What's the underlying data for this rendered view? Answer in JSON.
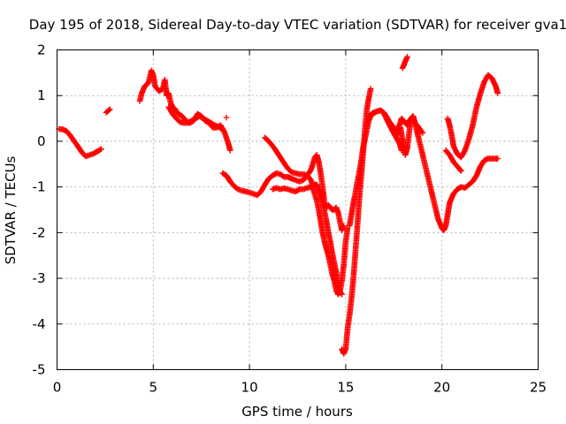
{
  "chart_data": {
    "type": "scatter",
    "title": "Day 195 of 2018, Sidereal Day-to-day VTEC variation (SDTVAR) for receiver gva1",
    "xlabel": "GPS time / hours",
    "ylabel": "SDTVAR / TECUs",
    "xlim": [
      0,
      25
    ],
    "ylim": [
      -5,
      2
    ],
    "xticks": [
      0,
      5,
      10,
      15,
      20,
      25
    ],
    "yticks": [
      -5,
      -4,
      -3,
      -2,
      -1,
      0,
      1,
      2
    ],
    "xtick_labels": [
      "0",
      "5",
      "10",
      "15",
      "20",
      "25"
    ],
    "ytick_labels": [
      "-5",
      "-4",
      "-3",
      "-2",
      "-1",
      "0",
      "1",
      "2"
    ],
    "grid": true,
    "marker": "plus",
    "color": "#ff0000",
    "series": [
      {
        "segments": [
          [
            [
              0.1,
              0.27
            ],
            [
              0.3,
              0.26
            ],
            [
              0.5,
              0.22
            ],
            [
              0.7,
              0.12
            ],
            [
              0.9,
              0.0
            ],
            [
              1.1,
              -0.12
            ],
            [
              1.3,
              -0.25
            ],
            [
              1.5,
              -0.33
            ],
            [
              1.7,
              -0.3
            ],
            [
              1.9,
              -0.27
            ],
            [
              2.1,
              -0.22
            ],
            [
              2.3,
              -0.17
            ]
          ],
          [
            [
              2.55,
              0.63
            ],
            [
              2.75,
              0.7
            ]
          ],
          [
            [
              4.3,
              0.88
            ],
            [
              4.4,
              1.05
            ],
            [
              4.55,
              1.2
            ],
            [
              4.75,
              1.28
            ],
            [
              4.9,
              1.55
            ],
            [
              5.0,
              1.45
            ],
            [
              5.1,
              1.2
            ],
            [
              5.3,
              1.1
            ],
            [
              5.5,
              1.15
            ],
            [
              5.6,
              1.35
            ],
            [
              5.7,
              1.0
            ],
            [
              5.8,
              1.05
            ],
            [
              5.9,
              0.85
            ],
            [
              6.0,
              0.75
            ],
            [
              6.1,
              0.72
            ],
            [
              6.3,
              0.6
            ],
            [
              6.5,
              0.55
            ],
            [
              6.7,
              0.45
            ],
            [
              6.9,
              0.4
            ],
            [
              7.1,
              0.45
            ],
            [
              7.3,
              0.6
            ],
            [
              7.5,
              0.55
            ],
            [
              7.7,
              0.45
            ],
            [
              7.9,
              0.4
            ],
            [
              8.1,
              0.3
            ],
            [
              8.3,
              0.3
            ],
            [
              8.5,
              0.35
            ],
            [
              8.7,
              0.2
            ],
            [
              8.9,
              -0.05
            ],
            [
              9.0,
              -0.2
            ]
          ],
          [
            [
              8.8,
              0.52
            ]
          ],
          [
            [
              5.8,
              0.75
            ],
            [
              6.0,
              0.6
            ],
            [
              6.2,
              0.5
            ],
            [
              6.4,
              0.42
            ],
            [
              6.6,
              0.4
            ],
            [
              6.8,
              0.4
            ],
            [
              7.0,
              0.45
            ],
            [
              7.2,
              0.5
            ],
            [
              7.4,
              0.55
            ],
            [
              7.6,
              0.5
            ],
            [
              7.8,
              0.45
            ],
            [
              8.0,
              0.4
            ],
            [
              8.2,
              0.35
            ],
            [
              8.4,
              0.32
            ],
            [
              8.6,
              0.25
            ]
          ],
          [
            [
              8.6,
              -0.7
            ],
            [
              8.8,
              -0.75
            ],
            [
              9.0,
              -0.88
            ],
            [
              9.2,
              -0.98
            ],
            [
              9.4,
              -1.05
            ],
            [
              9.6,
              -1.08
            ],
            [
              9.8,
              -1.1
            ],
            [
              10.0,
              -1.12
            ],
            [
              10.2,
              -1.15
            ],
            [
              10.4,
              -1.18
            ],
            [
              10.6,
              -1.1
            ],
            [
              10.8,
              -0.95
            ],
            [
              11.0,
              -0.82
            ],
            [
              11.2,
              -0.75
            ],
            [
              11.4,
              -0.7
            ],
            [
              11.6,
              -0.72
            ],
            [
              11.8,
              -0.78
            ],
            [
              12.0,
              -0.78
            ],
            [
              12.2,
              -0.82
            ],
            [
              12.4,
              -0.85
            ],
            [
              12.6,
              -0.88
            ],
            [
              12.8,
              -0.85
            ],
            [
              13.0,
              -0.75
            ],
            [
              13.2,
              -0.62
            ],
            [
              13.4,
              -0.35
            ],
            [
              13.5,
              -0.3
            ],
            [
              13.6,
              -0.45
            ],
            [
              13.7,
              -0.7
            ],
            [
              13.8,
              -1.0
            ],
            [
              13.9,
              -1.35
            ],
            [
              14.0,
              -1.45
            ],
            [
              14.1,
              -1.4
            ],
            [
              14.2,
              -1.45
            ],
            [
              14.3,
              -1.5
            ],
            [
              14.4,
              -1.5
            ],
            [
              14.5,
              -1.45
            ],
            [
              14.6,
              -1.55
            ],
            [
              14.7,
              -1.75
            ],
            [
              14.8,
              -1.95
            ],
            [
              14.9,
              -1.85
            ]
          ],
          [
            [
              10.8,
              0.08
            ],
            [
              11.0,
              0.0
            ],
            [
              11.2,
              -0.1
            ],
            [
              11.4,
              -0.22
            ],
            [
              11.6,
              -0.35
            ],
            [
              11.8,
              -0.48
            ],
            [
              12.0,
              -0.6
            ],
            [
              12.2,
              -0.68
            ],
            [
              12.4,
              -0.7
            ],
            [
              12.6,
              -0.72
            ],
            [
              12.8,
              -0.72
            ],
            [
              13.0,
              -0.75
            ],
            [
              13.2,
              -0.85
            ],
            [
              13.35,
              -1.1
            ],
            [
              13.5,
              -1.3
            ],
            [
              13.6,
              -1.5
            ],
            [
              13.7,
              -1.75
            ],
            [
              13.8,
              -2.0
            ],
            [
              13.9,
              -2.2
            ],
            [
              14.0,
              -2.35
            ],
            [
              14.1,
              -2.5
            ],
            [
              14.2,
              -2.7
            ],
            [
              14.3,
              -2.9
            ],
            [
              14.4,
              -3.05
            ],
            [
              14.5,
              -3.25
            ],
            [
              14.6,
              -3.35
            ],
            [
              14.7,
              -3.3
            ],
            [
              14.8,
              -3.05
            ],
            [
              14.9,
              -2.7
            ],
            [
              15.0,
              -2.2
            ],
            [
              15.1,
              -1.9
            ]
          ],
          [
            [
              11.2,
              -1.05
            ],
            [
              11.4,
              -1.02
            ],
            [
              11.6,
              -1.05
            ],
            [
              11.8,
              -1.03
            ],
            [
              12.0,
              -1.05
            ],
            [
              12.2,
              -1.08
            ],
            [
              12.4,
              -1.1
            ],
            [
              12.6,
              -1.05
            ],
            [
              12.8,
              -1.05
            ],
            [
              13.0,
              -1.02
            ],
            [
              13.2,
              -1.0
            ],
            [
              13.4,
              -0.95
            ],
            [
              13.5,
              -0.95
            ],
            [
              13.6,
              -1.05
            ],
            [
              13.7,
              -1.2
            ],
            [
              13.8,
              -1.35
            ],
            [
              13.9,
              -1.55
            ],
            [
              14.0,
              -1.75
            ],
            [
              14.1,
              -2.0
            ],
            [
              14.2,
              -2.2
            ],
            [
              14.3,
              -2.45
            ],
            [
              14.4,
              -2.65
            ],
            [
              14.5,
              -2.85
            ],
            [
              14.6,
              -3.1
            ],
            [
              14.7,
              -3.3
            ],
            [
              14.8,
              -3.35
            ]
          ],
          [
            [
              14.8,
              -4.55
            ],
            [
              14.9,
              -4.65
            ],
            [
              15.0,
              -4.55
            ],
            [
              15.1,
              -4.1
            ],
            [
              15.2,
              -3.8
            ],
            [
              15.3,
              -3.45
            ],
            [
              15.4,
              -3.0
            ],
            [
              15.5,
              -2.45
            ],
            [
              15.6,
              -1.9
            ],
            [
              15.7,
              -1.3
            ],
            [
              15.8,
              -0.8
            ],
            [
              15.9,
              -0.3
            ],
            [
              16.0,
              0.25
            ],
            [
              16.1,
              0.7
            ],
            [
              16.2,
              0.95
            ],
            [
              16.3,
              1.15
            ]
          ],
          [
            [
              15.2,
              -1.85
            ],
            [
              15.3,
              -1.6
            ],
            [
              15.4,
              -1.35
            ],
            [
              15.5,
              -1.15
            ],
            [
              15.6,
              -0.9
            ],
            [
              15.7,
              -0.7
            ],
            [
              15.8,
              -0.45
            ],
            [
              15.9,
              -0.15
            ],
            [
              16.0,
              0.05
            ],
            [
              16.1,
              0.25
            ],
            [
              16.2,
              0.45
            ],
            [
              16.3,
              0.55
            ],
            [
              16.4,
              0.6
            ],
            [
              16.6,
              0.65
            ],
            [
              16.8,
              0.68
            ],
            [
              17.0,
              0.62
            ],
            [
              17.2,
              0.48
            ],
            [
              17.4,
              0.35
            ],
            [
              17.6,
              0.25
            ],
            [
              17.8,
              0.35
            ],
            [
              17.9,
              0.5
            ],
            [
              18.0,
              0.45
            ],
            [
              18.1,
              0.4
            ],
            [
              18.2,
              0.35
            ],
            [
              18.3,
              0.45
            ],
            [
              18.5,
              0.55
            ],
            [
              18.6,
              0.4
            ],
            [
              18.8,
              0.3
            ],
            [
              19.0,
              0.18
            ]
          ],
          [
            [
              16.2,
              0.55
            ],
            [
              16.4,
              0.62
            ],
            [
              16.6,
              0.65
            ],
            [
              16.8,
              0.68
            ],
            [
              17.0,
              0.6
            ],
            [
              17.2,
              0.42
            ],
            [
              17.4,
              0.25
            ],
            [
              17.6,
              0.1
            ],
            [
              17.8,
              -0.05
            ],
            [
              17.9,
              -0.2
            ]
          ],
          [
            [
              17.7,
              0.15
            ],
            [
              17.85,
              0.3
            ],
            [
              18.0,
              -0.1
            ],
            [
              18.1,
              -0.3
            ],
            [
              18.2,
              -0.15
            ],
            [
              18.3,
              0.2
            ],
            [
              18.4,
              0.5
            ],
            [
              18.5,
              0.55
            ],
            [
              18.6,
              0.4
            ],
            [
              18.8,
              0.05
            ],
            [
              19.0,
              -0.3
            ],
            [
              19.2,
              -0.65
            ],
            [
              19.4,
              -1.0
            ],
            [
              19.6,
              -1.35
            ],
            [
              19.8,
              -1.7
            ],
            [
              20.0,
              -1.9
            ],
            [
              20.1,
              -1.95
            ],
            [
              20.2,
              -1.85
            ],
            [
              20.3,
              -1.6
            ],
            [
              20.4,
              -1.35
            ],
            [
              20.6,
              -1.15
            ],
            [
              20.8,
              -1.05
            ],
            [
              21.0,
              -1.0
            ],
            [
              21.2,
              -1.02
            ],
            [
              21.4,
              -0.95
            ],
            [
              21.6,
              -0.88
            ],
            [
              21.8,
              -0.75
            ],
            [
              22.0,
              -0.55
            ],
            [
              22.2,
              -0.42
            ],
            [
              22.4,
              -0.38
            ],
            [
              22.6,
              -0.38
            ],
            [
              22.8,
              -0.38
            ],
            [
              22.9,
              -0.38
            ]
          ],
          [
            [
              17.95,
              1.6
            ],
            [
              18.05,
              1.7
            ],
            [
              18.15,
              1.8
            ],
            [
              18.2,
              1.85
            ]
          ],
          [
            [
              20.3,
              0.5
            ],
            [
              20.4,
              0.35
            ],
            [
              20.5,
              0.15
            ],
            [
              20.6,
              -0.1
            ],
            [
              20.8,
              -0.28
            ],
            [
              21.0,
              -0.35
            ],
            [
              21.2,
              -0.2
            ],
            [
              21.4,
              0.05
            ],
            [
              21.6,
              0.35
            ],
            [
              21.8,
              0.75
            ],
            [
              22.0,
              1.05
            ],
            [
              22.2,
              1.3
            ],
            [
              22.4,
              1.45
            ],
            [
              22.6,
              1.38
            ],
            [
              22.8,
              1.2
            ],
            [
              22.9,
              1.05
            ]
          ],
          [
            [
              20.2,
              -0.2
            ],
            [
              20.4,
              -0.3
            ],
            [
              20.6,
              -0.45
            ],
            [
              20.8,
              -0.55
            ],
            [
              21.0,
              -0.65
            ]
          ]
        ]
      }
    ]
  }
}
